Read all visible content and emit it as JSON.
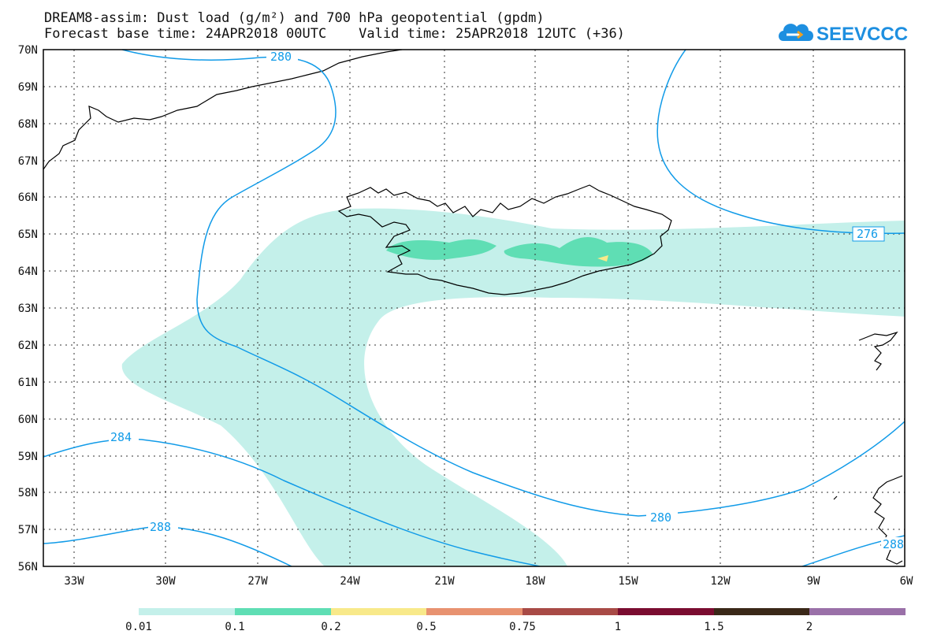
{
  "header": {
    "title_line_1": "DREAM8-assim: Dust load (g/m²) and 700 hPa geopotential (gpdm)",
    "title_line_2": "Forecast base time: 24APR2018 00UTC    Valid time: 25APR2018 12UTC (+36)"
  },
  "brand": {
    "name": "SEEVCCC",
    "color": "#1e8fe0",
    "icon": "cloud-logo-icon"
  },
  "map": {
    "lat_labels": [
      "70N",
      "69N",
      "68N",
      "67N",
      "66N",
      "65N",
      "64N",
      "63N",
      "62N",
      "61N",
      "60N",
      "59N",
      "58N",
      "57N",
      "56N"
    ],
    "lon_labels": [
      "33W",
      "30W",
      "27W",
      "24W",
      "21W",
      "18W",
      "15W",
      "12W",
      "9W",
      "6W"
    ],
    "contour_labels": [
      "280",
      "276",
      "284",
      "280",
      "288",
      "288"
    ],
    "contour_color": "#119be8"
  },
  "legend": {
    "colors": [
      "#c4f0ea",
      "#5fdeb4",
      "#f8e98a",
      "#e89270",
      "#a84a46",
      "#7a0c30",
      "#3a2818",
      "#9a70a8"
    ],
    "labels": [
      "0.01",
      "0.1",
      "0.2",
      "0.5",
      "0.75",
      "1",
      "1.5",
      "2"
    ]
  }
}
